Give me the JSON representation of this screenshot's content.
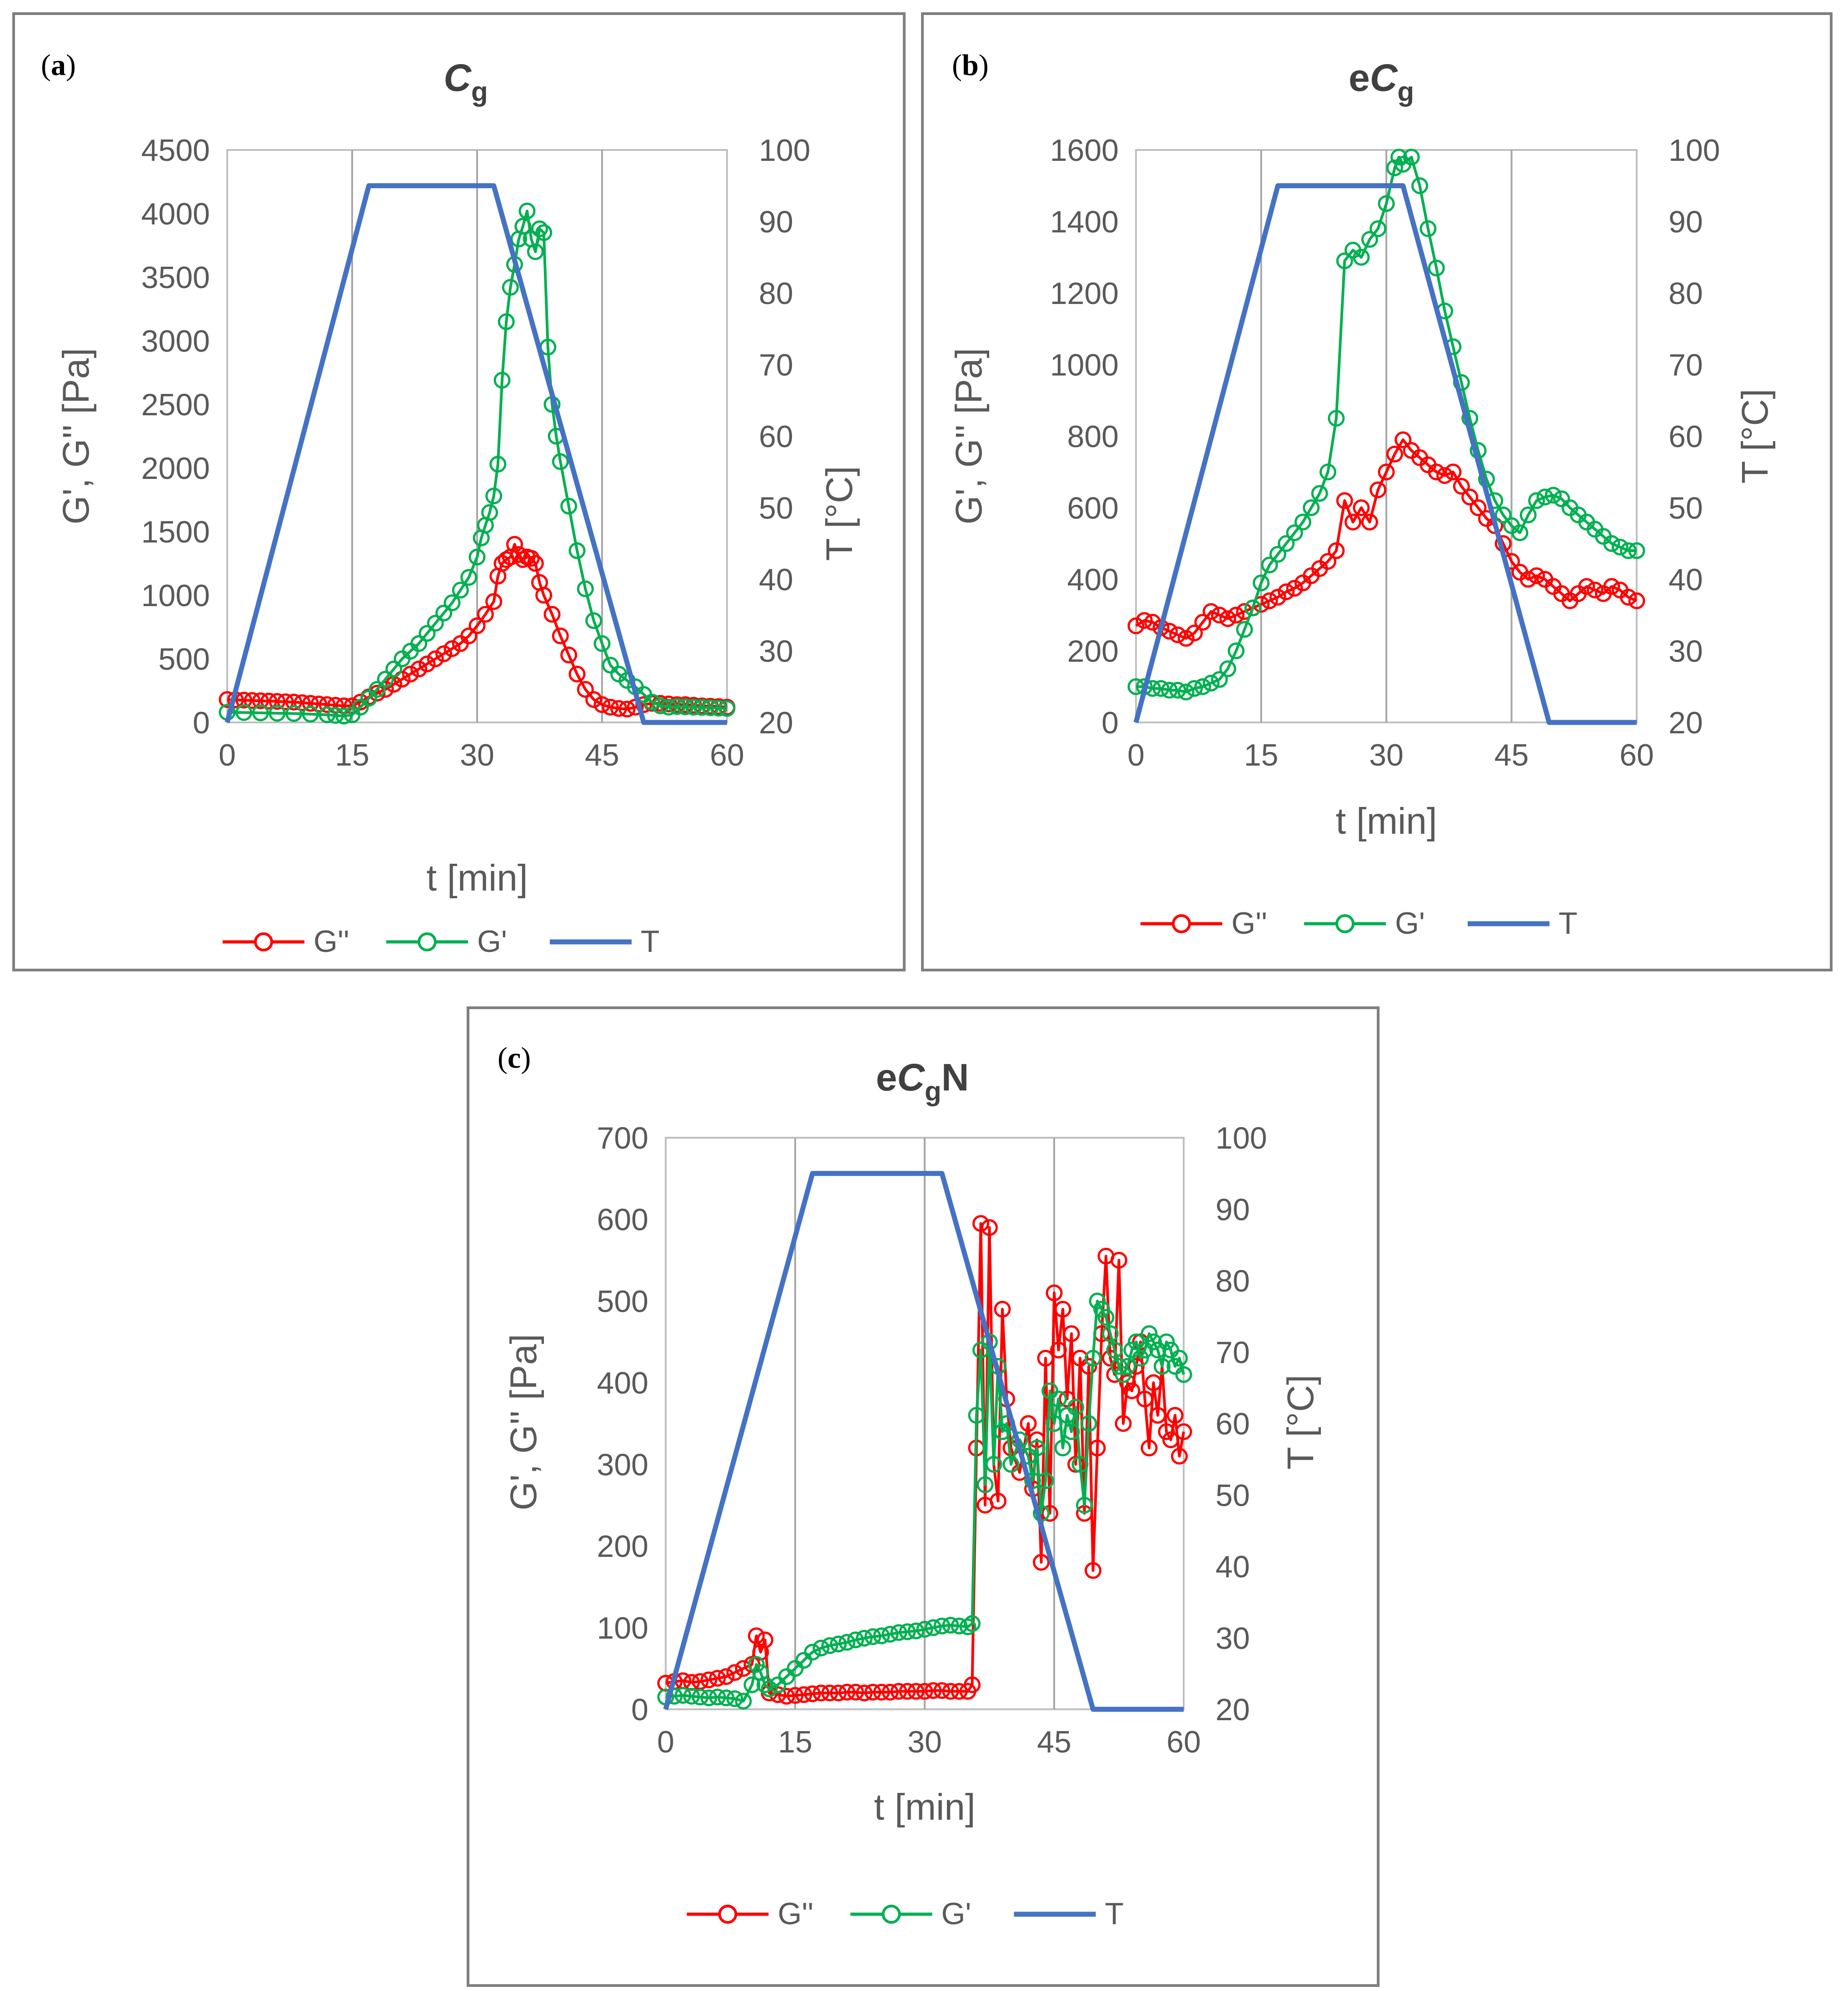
{
  "chart_data": [
    {
      "panel_label": "(a)",
      "panel_letter": "a",
      "type": "line",
      "title": {
        "prefix": "",
        "italic": "C",
        "sub": "g",
        "suffix": ""
      },
      "xlabel": "t [min]",
      "ylabel_left": "G', G'' [Pa]",
      "ylabel_right": "T [°C]",
      "xlim": [
        0,
        60
      ],
      "x_ticks": [
        "0",
        "15",
        "30",
        "45",
        "60"
      ],
      "ylim_left": [
        0,
        4500
      ],
      "y_ticks_left": [
        "0",
        "500",
        "1000",
        "1500",
        "2000",
        "2500",
        "3000",
        "3500",
        "4000",
        "4500"
      ],
      "ylim_right": [
        20,
        100
      ],
      "y_ticks_right": [
        "20",
        "30",
        "40",
        "50",
        "60",
        "70",
        "80",
        "90",
        "100"
      ],
      "legend": [
        "G''",
        "G'",
        "T"
      ],
      "series": [
        {
          "name": "G''",
          "color": "#ff0000",
          "axis": "left",
          "x": [
            0,
            1,
            2,
            3,
            4,
            5,
            6,
            7,
            8,
            9,
            10,
            11,
            12,
            13,
            14,
            15,
            16,
            17,
            18,
            19,
            20,
            21,
            22,
            23,
            24,
            25,
            26,
            27,
            28,
            29,
            30,
            31,
            32,
            32.5,
            33,
            33.5,
            34,
            34.5,
            35,
            35.5,
            36,
            36.5,
            37,
            37.5,
            38,
            39,
            40,
            41,
            42,
            43,
            44,
            45,
            46,
            47,
            48,
            49,
            50,
            51,
            52,
            53,
            54,
            55,
            56,
            57,
            58,
            59,
            60
          ],
          "y": [
            180,
            178,
            175,
            172,
            170,
            168,
            165,
            162,
            160,
            155,
            150,
            145,
            140,
            135,
            130,
            130,
            160,
            200,
            230,
            260,
            300,
            340,
            380,
            420,
            460,
            500,
            540,
            580,
            620,
            680,
            760,
            850,
            950,
            1150,
            1250,
            1280,
            1300,
            1400,
            1320,
            1280,
            1300,
            1290,
            1250,
            1100,
            1000,
            850,
            680,
            530,
            380,
            260,
            180,
            140,
            120,
            110,
            105,
            120,
            140,
            150,
            150,
            145,
            140,
            140,
            135,
            130,
            128,
            125,
            120
          ]
        },
        {
          "name": "G'",
          "color": "#00b050",
          "axis": "left",
          "x": [
            0,
            2,
            4,
            6,
            8,
            10,
            12,
            13,
            14,
            15,
            16,
            17,
            18,
            19,
            20,
            21,
            22,
            23,
            24,
            25,
            26,
            27,
            28,
            29,
            30,
            30.5,
            31,
            31.5,
            32,
            32.5,
            33,
            33.5,
            34,
            34.5,
            35,
            35.5,
            36,
            36.5,
            37,
            37.5,
            38,
            38.5,
            39,
            39.5,
            40,
            41,
            42,
            43,
            44,
            45,
            46,
            47,
            48,
            49,
            50,
            51,
            52,
            53,
            54,
            55,
            56,
            57,
            58,
            59,
            60
          ],
          "y": [
            80,
            78,
            75,
            72,
            70,
            65,
            60,
            55,
            50,
            60,
            120,
            190,
            260,
            340,
            420,
            500,
            560,
            620,
            700,
            780,
            860,
            940,
            1040,
            1140,
            1300,
            1450,
            1550,
            1650,
            1780,
            2030,
            2690,
            3150,
            3420,
            3600,
            3800,
            3900,
            4020,
            3800,
            3700,
            3880,
            3850,
            2950,
            2500,
            2250,
            2050,
            1700,
            1350,
            1050,
            800,
            620,
            450,
            380,
            330,
            280,
            220,
            160,
            130,
            120,
            125,
            122,
            120,
            118,
            115,
            112,
            110
          ]
        },
        {
          "name": "T",
          "color": "#4472c4",
          "axis": "right",
          "line_only": true,
          "x": [
            0,
            17,
            32,
            50,
            60
          ],
          "y": [
            20,
            95,
            95,
            20,
            20
          ]
        }
      ]
    },
    {
      "panel_label": "(b)",
      "panel_letter": "b",
      "type": "line",
      "title": {
        "prefix": "e",
        "italic": "C",
        "sub": "g",
        "suffix": ""
      },
      "xlabel": "t [min]",
      "ylabel_left": "G', G'' [Pa]",
      "ylabel_right": "T [°C]",
      "xlim": [
        0,
        60
      ],
      "x_ticks": [
        "0",
        "15",
        "30",
        "45",
        "60"
      ],
      "ylim_left": [
        0,
        1600
      ],
      "y_ticks_left": [
        "0",
        "200",
        "400",
        "600",
        "800",
        "1000",
        "1200",
        "1400",
        "1600"
      ],
      "ylim_right": [
        20,
        100
      ],
      "y_ticks_right": [
        "20",
        "30",
        "40",
        "50",
        "60",
        "70",
        "80",
        "90",
        "100"
      ],
      "legend": [
        "G''",
        "G'",
        "T"
      ],
      "series": [
        {
          "name": "G''",
          "color": "#ff0000",
          "axis": "left",
          "x": [
            0,
            1,
            2,
            3,
            4,
            5,
            6,
            7,
            8,
            9,
            10,
            11,
            12,
            13,
            14,
            15,
            16,
            17,
            18,
            19,
            20,
            21,
            22,
            23,
            24,
            25,
            26,
            27,
            28,
            29,
            30,
            31,
            32,
            33,
            34,
            35,
            36,
            37,
            38,
            39,
            40,
            41,
            42,
            43,
            44,
            45,
            46,
            47,
            48,
            49,
            50,
            51,
            52,
            53,
            54,
            55,
            56,
            57,
            58,
            59,
            60
          ],
          "y": [
            270,
            285,
            280,
            265,
            255,
            245,
            235,
            250,
            280,
            310,
            300,
            290,
            300,
            310,
            320,
            330,
            340,
            350,
            365,
            375,
            390,
            410,
            430,
            450,
            480,
            620,
            560,
            600,
            560,
            650,
            700,
            750,
            790,
            760,
            740,
            720,
            700,
            690,
            700,
            660,
            630,
            600,
            570,
            550,
            500,
            450,
            420,
            400,
            410,
            400,
            380,
            360,
            340,
            360,
            380,
            370,
            360,
            380,
            370,
            350,
            340
          ]
        },
        {
          "name": "G'",
          "color": "#00b050",
          "axis": "left",
          "x": [
            0,
            1,
            2,
            3,
            4,
            5,
            6,
            7,
            8,
            9,
            10,
            11,
            12,
            13,
            14,
            15,
            16,
            17,
            18,
            19,
            20,
            21,
            22,
            23,
            24,
            25,
            26,
            27,
            28,
            29,
            30,
            31,
            31.5,
            32,
            33,
            34,
            35,
            36,
            37,
            38,
            39,
            40,
            41,
            42,
            43,
            44,
            45,
            46,
            47,
            48,
            49,
            50,
            51,
            52,
            53,
            54,
            55,
            56,
            57,
            58,
            59,
            60
          ],
          "y": [
            100,
            100,
            95,
            95,
            90,
            90,
            85,
            95,
            100,
            110,
            120,
            150,
            200,
            260,
            320,
            390,
            440,
            470,
            500,
            530,
            560,
            600,
            640,
            700,
            850,
            1290,
            1320,
            1300,
            1350,
            1380,
            1450,
            1550,
            1580,
            1560,
            1580,
            1500,
            1380,
            1270,
            1150,
            1050,
            950,
            850,
            760,
            680,
            620,
            580,
            550,
            530,
            580,
            620,
            630,
            635,
            625,
            600,
            580,
            560,
            540,
            520,
            500,
            490,
            480,
            480
          ]
        },
        {
          "name": "T",
          "color": "#4472c4",
          "axis": "right",
          "line_only": true,
          "x": [
            0,
            17,
            32,
            49.5,
            60
          ],
          "y": [
            20,
            95,
            95,
            20,
            20
          ]
        }
      ]
    },
    {
      "panel_label": "(c)",
      "panel_letter": "c",
      "type": "line",
      "title": {
        "prefix": "e",
        "italic": "C",
        "sub": "g",
        "suffix": "N"
      },
      "xlabel": "t [min]",
      "ylabel_left": "G', G'' [Pa]",
      "ylabel_right": "T [°C]",
      "xlim": [
        0,
        60
      ],
      "x_ticks": [
        "0",
        "15",
        "30",
        "45",
        "60"
      ],
      "ylim_left": [
        0,
        700
      ],
      "y_ticks_left": [
        "0",
        "100",
        "200",
        "300",
        "400",
        "500",
        "600",
        "700"
      ],
      "ylim_right": [
        20,
        100
      ],
      "y_ticks_right": [
        "20",
        "30",
        "40",
        "50",
        "60",
        "70",
        "80",
        "90",
        "100"
      ],
      "legend": [
        "G''",
        "G'",
        "T"
      ],
      "series": [
        {
          "name": "G''",
          "color": "#ff0000",
          "axis": "left",
          "x": [
            0,
            1,
            2,
            3,
            4,
            5,
            6,
            7,
            8,
            9,
            10,
            10.5,
            11,
            11.5,
            12,
            13,
            14,
            15,
            16,
            17,
            18,
            19,
            20,
            21,
            22,
            23,
            24,
            25,
            26,
            27,
            28,
            29,
            30,
            31,
            32,
            33,
            34,
            35,
            35.5,
            36,
            36.5,
            37,
            37.5,
            38,
            38.5,
            39,
            39.5,
            40,
            41,
            42,
            42.5,
            43,
            43.5,
            44,
            44.5,
            45,
            45.5,
            46,
            46.5,
            47,
            47.5,
            48,
            48.5,
            49,
            49.5,
            50,
            50.5,
            51,
            51.5,
            52,
            52.5,
            53,
            53.5,
            54,
            54.5,
            55,
            55.5,
            56,
            56.5,
            57,
            57.5,
            58,
            58.5,
            59,
            59.5,
            60
          ],
          "y": [
            32,
            34,
            35,
            33,
            34,
            36,
            38,
            40,
            45,
            50,
            55,
            90,
            70,
            85,
            20,
            18,
            16,
            17,
            18,
            19,
            20,
            20,
            20,
            21,
            21,
            20,
            21,
            21,
            21,
            22,
            22,
            22,
            22,
            23,
            23,
            22,
            22,
            22,
            30,
            320,
            595,
            250,
            590,
            300,
            255,
            490,
            380,
            320,
            290,
            350,
            270,
            330,
            180,
            430,
            240,
            510,
            440,
            490,
            380,
            460,
            300,
            430,
            240,
            420,
            170,
            320,
            460,
            555,
            430,
            410,
            550,
            350,
            400,
            390,
            420,
            450,
            380,
            320,
            400,
            360,
            420,
            340,
            330,
            360,
            310,
            340
          ]
        },
        {
          "name": "G'",
          "color": "#00b050",
          "axis": "left",
          "x": [
            0,
            1,
            2,
            3,
            4,
            5,
            6,
            7,
            8,
            9,
            10,
            10.5,
            11,
            11.5,
            12,
            13,
            14,
            15,
            16,
            17,
            18,
            19,
            20,
            21,
            22,
            23,
            24,
            25,
            26,
            27,
            28,
            29,
            30,
            31,
            32,
            33,
            34,
            35,
            35.5,
            36,
            36.5,
            37,
            37.5,
            38,
            38.5,
            39,
            39.5,
            40,
            41,
            42,
            42.5,
            43,
            43.5,
            44,
            44.5,
            45,
            45.5,
            46,
            46.5,
            47,
            47.5,
            48,
            48.5,
            49,
            49.5,
            50,
            50.5,
            51,
            51.5,
            52,
            52.5,
            53,
            53.5,
            54,
            54.5,
            55,
            55.5,
            56,
            56.5,
            57,
            57.5,
            58,
            58.5,
            59,
            59.5,
            60
          ],
          "y": [
            15,
            16,
            17,
            16,
            15,
            14,
            15,
            14,
            13,
            10,
            30,
            55,
            45,
            30,
            25,
            30,
            40,
            50,
            60,
            70,
            75,
            78,
            80,
            82,
            85,
            87,
            89,
            90,
            92,
            94,
            95,
            96,
            98,
            100,
            102,
            103,
            102,
            101,
            105,
            360,
            440,
            275,
            450,
            300,
            420,
            340,
            350,
            300,
            330,
            310,
            280,
            320,
            240,
            280,
            390,
            350,
            380,
            320,
            360,
            340,
            370,
            300,
            250,
            350,
            430,
            500,
            490,
            480,
            460,
            440,
            420,
            410,
            420,
            440,
            450,
            430,
            440,
            460,
            450,
            440,
            420,
            450,
            440,
            420,
            430,
            410
          ]
        },
        {
          "name": "T",
          "color": "#4472c4",
          "axis": "right",
          "line_only": true,
          "x": [
            0,
            17,
            32,
            49.5,
            60
          ],
          "y": [
            20,
            95,
            95,
            20,
            20
          ]
        }
      ]
    }
  ]
}
